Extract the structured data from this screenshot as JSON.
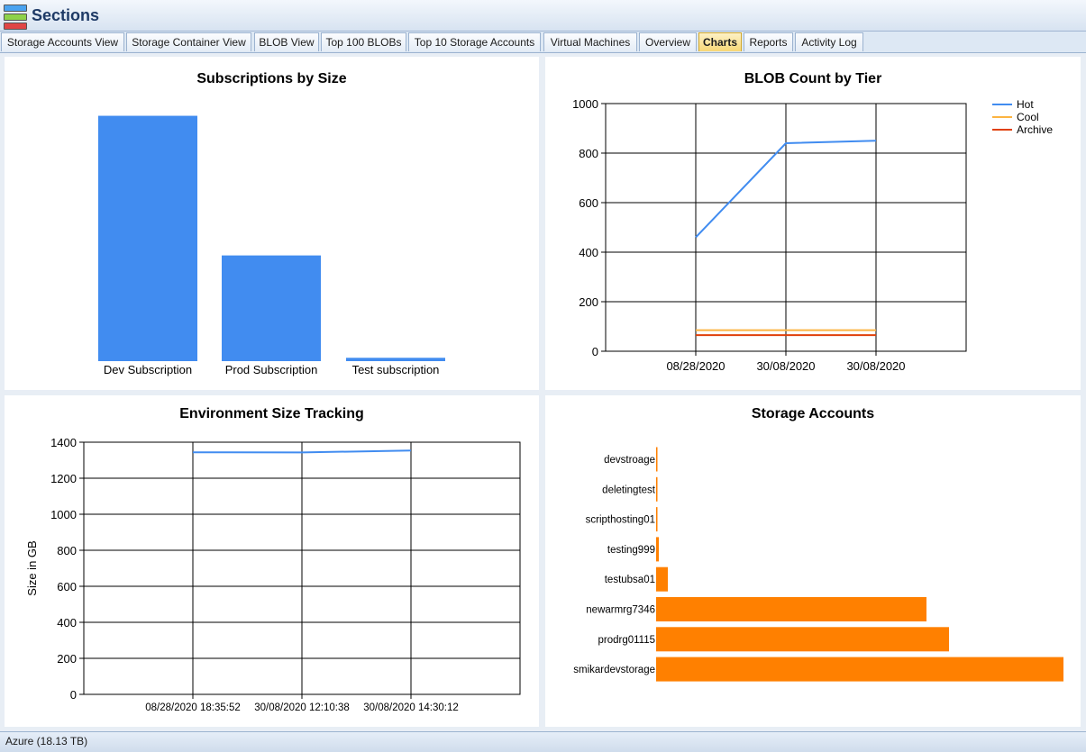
{
  "window": {
    "title": "Sections"
  },
  "tabs": [
    {
      "label": "Storage Accounts View"
    },
    {
      "label": "Storage Container View"
    },
    {
      "label": "BLOB View"
    },
    {
      "label": "Top 100 BLOBs"
    },
    {
      "label": "Top 10 Storage Accounts"
    },
    {
      "label": "Virtual Machines"
    },
    {
      "label": "Overview"
    },
    {
      "label": "Charts",
      "active": true
    },
    {
      "label": "Reports"
    },
    {
      "label": "Activity Log"
    }
  ],
  "status": {
    "text": "Azure (18.13 TB)"
  },
  "colors": {
    "bar_blue": "#418cf0",
    "bar_orange": "#ff8000",
    "hot": "#418cf0",
    "cool": "#fcb441",
    "archive": "#e0400a"
  },
  "chart_data": [
    {
      "type": "bar",
      "title": "Subscriptions by Size",
      "categories": [
        "Dev Subscription",
        "Prod Subscription",
        "Test subscription"
      ],
      "values": [
        882,
        380,
        12
      ],
      "ylim": [
        0,
        900
      ]
    },
    {
      "type": "line",
      "title": "BLOB Count by Tier",
      "categories": [
        "08/28/2020",
        "30/08/2020",
        "30/08/2020"
      ],
      "series": [
        {
          "name": "Hot",
          "values": [
            460,
            840,
            850
          ]
        },
        {
          "name": "Cool",
          "values": [
            85,
            85,
            85
          ]
        },
        {
          "name": "Archive",
          "values": [
            65,
            65,
            65
          ]
        }
      ],
      "ylim": [
        0,
        1000
      ],
      "yticks": [
        0,
        200,
        400,
        600,
        800,
        1000
      ],
      "legend": "top-right",
      "grid": true
    },
    {
      "type": "line",
      "title": "Environment Size Tracking",
      "ylabel": "Size in GB",
      "categories": [
        "08/28/2020 18:35:52",
        "30/08/2020 12:10:38",
        "30/08/2020 14:30:12"
      ],
      "series": [
        {
          "values": [
            1344,
            1343,
            1354
          ]
        }
      ],
      "ylim": [
        0,
        1400
      ],
      "yticks": [
        0,
        200,
        400,
        600,
        800,
        1000,
        1200,
        1400
      ],
      "grid": true
    },
    {
      "type": "bar",
      "orientation": "horizontal",
      "title": "Storage Accounts",
      "categories": [
        "devstroage",
        "deletingtest",
        "scripthosting01",
        "testing999",
        "testubsa01",
        "newarmrg7346",
        "prodrg01115",
        "smikardevstorage"
      ],
      "values": [
        0.5,
        0.5,
        0.8,
        3,
        13,
        300,
        325,
        452
      ],
      "xlim": [
        0,
        452
      ]
    }
  ]
}
